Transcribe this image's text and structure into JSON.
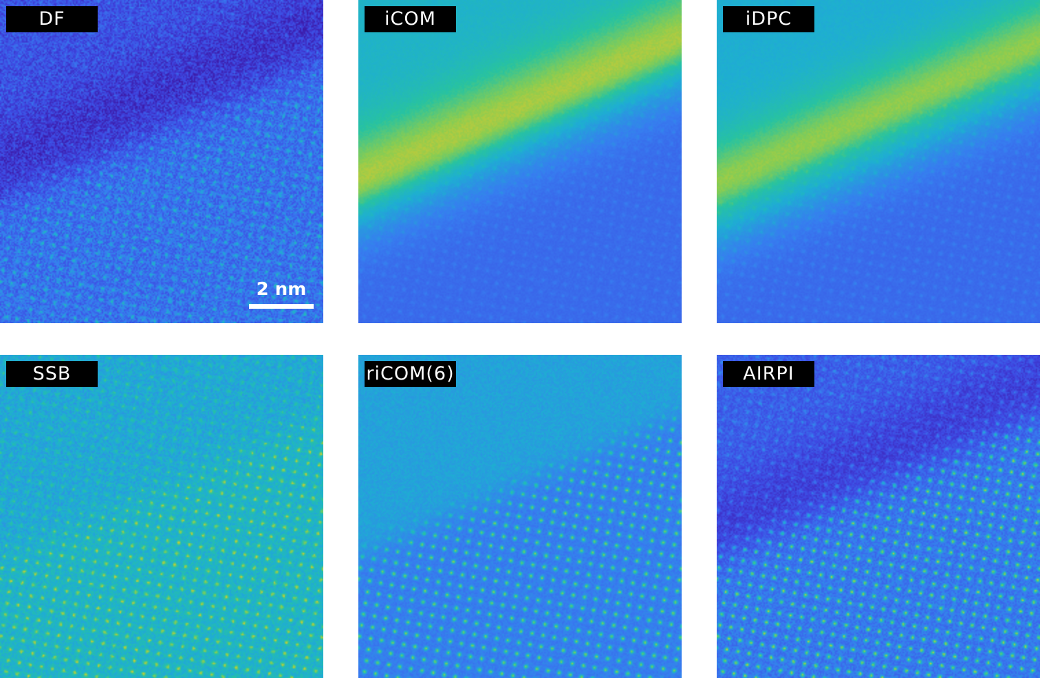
{
  "panels": [
    {
      "id": "df",
      "label": "DF",
      "style": "df"
    },
    {
      "id": "icom",
      "label": "iCOM",
      "style": "icom"
    },
    {
      "id": "idpc",
      "label": "iDPC",
      "style": "idpc"
    },
    {
      "id": "ssb",
      "label": "SSB",
      "style": "ssb"
    },
    {
      "id": "ricom",
      "label": "riCOM(6)",
      "style": "ricom"
    },
    {
      "id": "airpi",
      "label": "AIRPI",
      "style": "airpi"
    }
  ],
  "scalebar": {
    "label": "2 nm"
  },
  "colormap": "viridis-like",
  "colors": {
    "label_bg": "#000000",
    "label_fg": "#ffffff",
    "scalebar": "#ffffff"
  }
}
